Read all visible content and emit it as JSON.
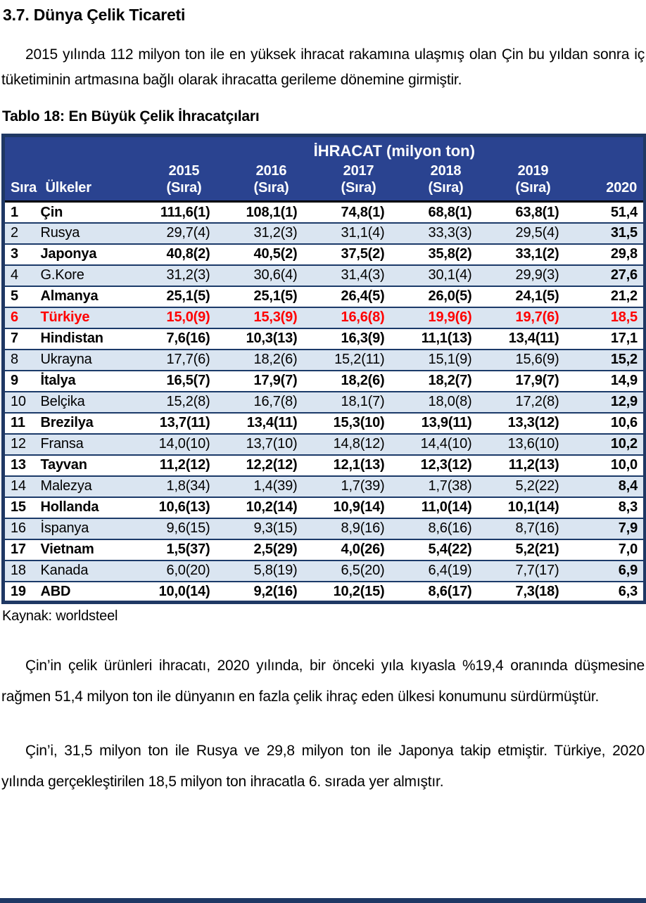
{
  "page": {
    "heading": "3.7. Dünya Çelik Ticareti",
    "intro_paragraph": "2015 yılında 112 milyon ton ile en yüksek ihracat rakamına ulaşmış olan Çin bu yıldan sonra iç tüketiminin artmasına bağlı olarak ihracatta gerileme dönemine girmiştir.",
    "table_caption": "Tablo 18: En Büyük Çelik İhracatçıları",
    "source_note": "Kaynak: worldsteel",
    "analysis_paragraph_1": "Çin’in çelik ürünleri ihracatı, 2020 yılında, bir önceki yıla kıyasla  %19,4 oranında düşmesine rağmen 51,4 milyon ton ile dünyanın en fazla çelik ihraç eden ülkesi konumunu sürdürmüştür.",
    "analysis_paragraph_2": "Çin’i, 31,5 milyon ton ile Rusya ve 29,8 milyon ton ile Japonya takip etmiştir. Türkiye, 2020 yılında gerçekleştirilen 18,5 milyon ton ihracatla 6. sırada yer almıştır."
  },
  "colors": {
    "header_bg": "#2A4390",
    "table_frame": "#1F3864",
    "alt_row_bg": "#DAE5F1",
    "highlight_text": "#FF0000"
  },
  "table": {
    "group_header": "İHRACAT (milyon ton)",
    "columns": {
      "rank": "Sıra",
      "country": "Ülkeler",
      "years": [
        "2015",
        "2016",
        "2017",
        "2018",
        "2019"
      ],
      "year_subline": "(Sıra)",
      "last": "2020"
    },
    "rows": [
      {
        "rank": "1",
        "country": "Çin",
        "values": [
          "111,6(1)",
          "108,1(1)",
          "74,8(1)",
          "68,8(1)",
          "63,8(1)"
        ],
        "y2020": "51,4",
        "highlight": false
      },
      {
        "rank": "2",
        "country": "Rusya",
        "values": [
          "29,7(4)",
          "31,2(3)",
          "31,1(4)",
          "33,3(3)",
          "29,5(4)"
        ],
        "y2020": "31,5",
        "highlight": false
      },
      {
        "rank": "3",
        "country": "Japonya",
        "values": [
          "40,8(2)",
          "40,5(2)",
          "37,5(2)",
          "35,8(2)",
          "33,1(2)"
        ],
        "y2020": "29,8",
        "highlight": false
      },
      {
        "rank": "4",
        "country": "G.Kore",
        "values": [
          "31,2(3)",
          "30,6(4)",
          "31,4(3)",
          "30,1(4)",
          "29,9(3)"
        ],
        "y2020": "27,6",
        "highlight": false
      },
      {
        "rank": "5",
        "country": "Almanya",
        "values": [
          "25,1(5)",
          "25,1(5)",
          "26,4(5)",
          "26,0(5)",
          "24,1(5)"
        ],
        "y2020": "21,2",
        "highlight": false
      },
      {
        "rank": "6",
        "country": "Türkiye",
        "values": [
          "15,0(9)",
          "15,3(9)",
          "16,6(8)",
          "19,9(6)",
          "19,7(6)"
        ],
        "y2020": "18,5",
        "highlight": true
      },
      {
        "rank": "7",
        "country": "Hindistan",
        "values": [
          "7,6(16)",
          "10,3(13)",
          "16,3(9)",
          "11,1(13)",
          "13,4(11)"
        ],
        "y2020": "17,1",
        "highlight": false
      },
      {
        "rank": "8",
        "country": "Ukrayna",
        "values": [
          "17,7(6)",
          "18,2(6)",
          "15,2(11)",
          "15,1(9)",
          "15,6(9)"
        ],
        "y2020": "15,2",
        "highlight": false
      },
      {
        "rank": "9",
        "country": "İtalya",
        "values": [
          "16,5(7)",
          "17,9(7)",
          "18,2(6)",
          "18,2(7)",
          "17,9(7)"
        ],
        "y2020": "14,9",
        "highlight": false
      },
      {
        "rank": "10",
        "country": "Belçika",
        "values": [
          "15,2(8)",
          "16,7(8)",
          "18,1(7)",
          "18,0(8)",
          "17,2(8)"
        ],
        "y2020": "12,9",
        "highlight": false
      },
      {
        "rank": "11",
        "country": "Brezilya",
        "values": [
          "13,7(11)",
          "13,4(11)",
          "15,3(10)",
          "13,9(11)",
          "13,3(12)"
        ],
        "y2020": "10,6",
        "highlight": false
      },
      {
        "rank": "12",
        "country": "Fransa",
        "values": [
          "14,0(10)",
          "13,7(10)",
          "14,8(12)",
          "14,4(10)",
          "13,6(10)"
        ],
        "y2020": "10,2",
        "highlight": false
      },
      {
        "rank": "13",
        "country": "Tayvan",
        "values": [
          "11,2(12)",
          "12,2(12)",
          "12,1(13)",
          "12,3(12)",
          "11,2(13)"
        ],
        "y2020": "10,0",
        "highlight": false
      },
      {
        "rank": "14",
        "country": "Malezya",
        "values": [
          "1,8(34)",
          "1,4(39)",
          "1,7(39)",
          "1,7(38)",
          "5,2(22)"
        ],
        "y2020": "8,4",
        "highlight": false
      },
      {
        "rank": "15",
        "country": "Hollanda",
        "values": [
          "10,6(13)",
          "10,2(14)",
          "10,9(14)",
          "11,0(14)",
          "10,1(14)"
        ],
        "y2020": "8,3",
        "highlight": false
      },
      {
        "rank": "16",
        "country": "İspanya",
        "values": [
          "9,6(15)",
          "9,3(15)",
          "8,9(16)",
          "8,6(16)",
          "8,7(16)"
        ],
        "y2020": "7,9",
        "highlight": false
      },
      {
        "rank": "17",
        "country": "Vietnam",
        "values": [
          "1,5(37)",
          "2,5(29)",
          "4,0(26)",
          "5,4(22)",
          "5,2(21)"
        ],
        "y2020": "7,0",
        "highlight": false
      },
      {
        "rank": "18",
        "country": "Kanada",
        "values": [
          "6,0(20)",
          "5,8(19)",
          "6,5(20)",
          "6,4(19)",
          "7,7(17)"
        ],
        "y2020": "6,9",
        "highlight": false
      },
      {
        "rank": "19",
        "country": "ABD",
        "values": [
          "10,0(14)",
          "9,2(16)",
          "10,2(15)",
          "8,6(17)",
          "7,3(18)"
        ],
        "y2020": "6,3",
        "highlight": false
      }
    ]
  }
}
